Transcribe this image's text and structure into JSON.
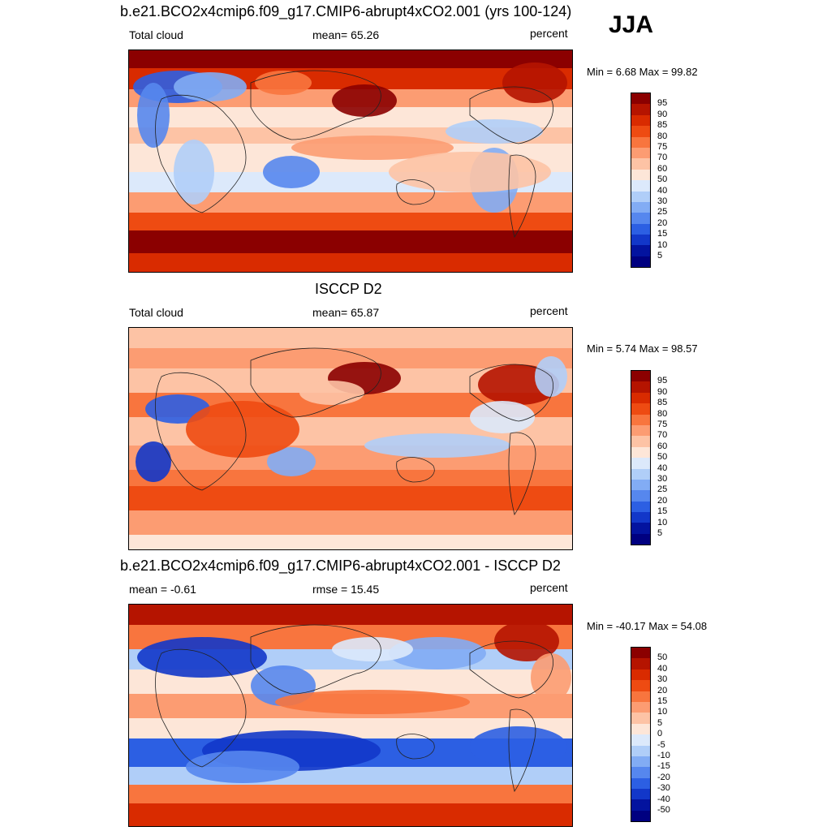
{
  "season": "JJA",
  "panels": [
    {
      "id": "model",
      "title": "b.e21.BCO2x4cmip6.f09_g17.CMIP6-abrupt4xCO2.001 (yrs 100-124)",
      "left_label": "Total cloud",
      "center_label": "mean=  65.26",
      "right_label": "percent",
      "minmax": "Min =   6.68 Max =  99.82",
      "palette": "absolute"
    },
    {
      "id": "obs",
      "title": "ISCCP D2",
      "left_label": "Total cloud",
      "center_label": "mean=  65.87",
      "right_label": "percent",
      "minmax": "Min =   5.74 Max =  98.57",
      "palette": "absolute"
    },
    {
      "id": "diff",
      "title": "b.e21.BCO2x4cmip6.f09_g17.CMIP6-abrupt4xCO2.001 - ISCCP D2",
      "left_label": "mean =  -0.61",
      "center_label": "rmse =  15.45",
      "right_label": "percent",
      "minmax": "Min = -40.17 Max =  54.08",
      "palette": "difference"
    }
  ],
  "colorbars": {
    "absolute": {
      "labels": [
        "95",
        "90",
        "85",
        "80",
        "75",
        "70",
        "60",
        "50",
        "40",
        "30",
        "25",
        "20",
        "15",
        "10",
        "5"
      ],
      "colors": [
        "#8b0000",
        "#b51400",
        "#d92b00",
        "#ee4b12",
        "#f8753e",
        "#fc9c72",
        "#fdc3a5",
        "#fde6d8",
        "#dce9fb",
        "#b0cef8",
        "#82acf4",
        "#5687ee",
        "#2c5fe3",
        "#1237c9",
        "#03139f",
        "#000080"
      ]
    },
    "difference": {
      "labels": [
        "50",
        "40",
        "30",
        "20",
        "15",
        "10",
        "5",
        "0",
        "-5",
        "-10",
        "-15",
        "-20",
        "-30",
        "-40",
        "-50"
      ],
      "colors": [
        "#8b0000",
        "#b51400",
        "#d92b00",
        "#ee4b12",
        "#f8753e",
        "#fc9c72",
        "#fdc3a5",
        "#fde6d8",
        "#dce9fb",
        "#b0cef8",
        "#82acf4",
        "#5687ee",
        "#2c5fe3",
        "#1237c9",
        "#03139f",
        "#000080"
      ]
    }
  },
  "chart_data": [
    {
      "type": "heatmap",
      "title": "b.e21.BCO2x4cmip6.f09_g17.CMIP6-abrupt4xCO2.001 (yrs 100-124)",
      "variable": "Total cloud",
      "units": "percent",
      "mean": 65.26,
      "min": 6.68,
      "max": 99.82,
      "levels": [
        5,
        10,
        15,
        20,
        25,
        30,
        40,
        50,
        60,
        70,
        75,
        80,
        85,
        90,
        95
      ]
    },
    {
      "type": "heatmap",
      "title": "ISCCP D2",
      "variable": "Total cloud",
      "units": "percent",
      "mean": 65.87,
      "min": 5.74,
      "max": 98.57,
      "levels": [
        5,
        10,
        15,
        20,
        25,
        30,
        40,
        50,
        60,
        70,
        75,
        80,
        85,
        90,
        95
      ]
    },
    {
      "type": "heatmap",
      "title": "b.e21.BCO2x4cmip6.f09_g17.CMIP6-abrupt4xCO2.001 - ISCCP D2",
      "units": "percent",
      "mean": -0.61,
      "rmse": 15.45,
      "min": -40.17,
      "max": 54.08,
      "levels": [
        -50,
        -40,
        -30,
        -20,
        -15,
        -10,
        -5,
        0,
        5,
        10,
        15,
        20,
        30,
        40,
        50
      ]
    }
  ]
}
